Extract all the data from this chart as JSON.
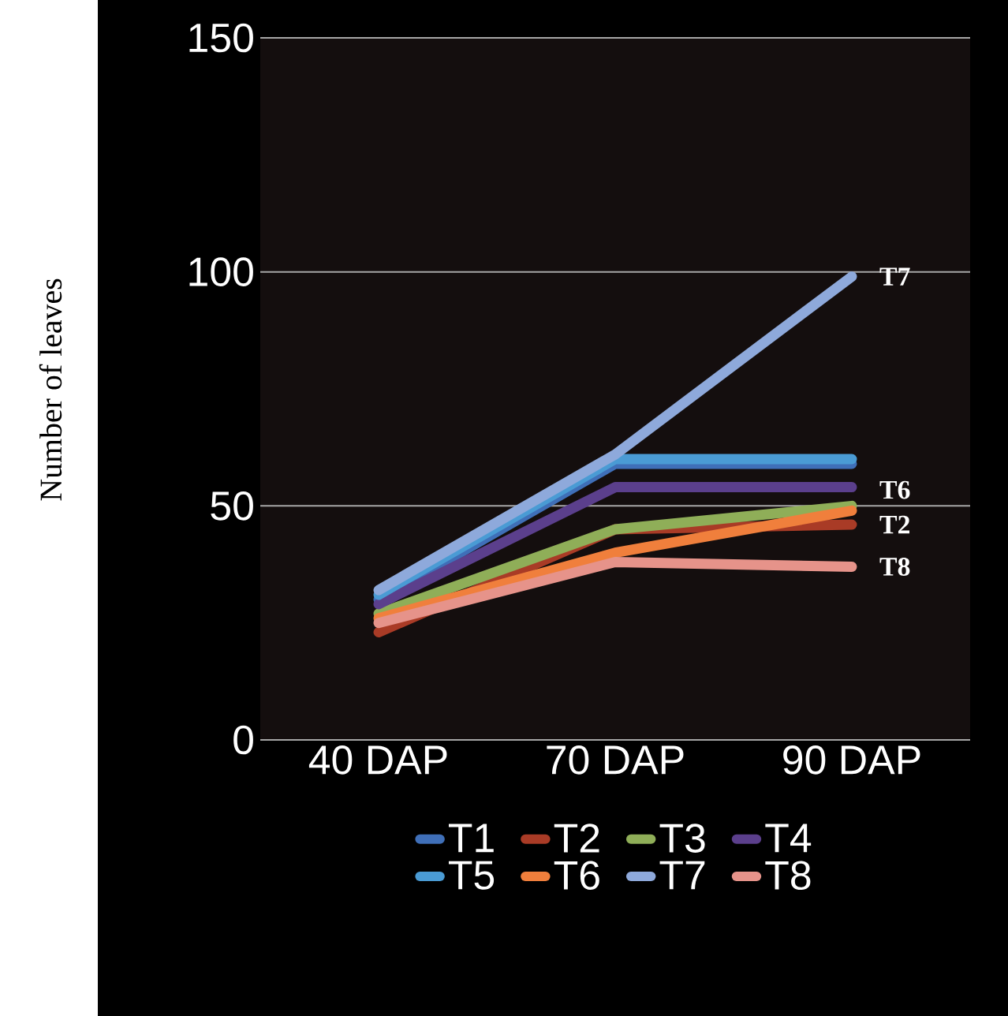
{
  "chart_data": {
    "type": "line",
    "ylabel": "Number of leaves",
    "categories": [
      "40 DAP",
      "70 DAP",
      "90 DAP"
    ],
    "ylim": [
      0,
      150
    ],
    "yticks": [
      0,
      50,
      100,
      150
    ],
    "grid": "y",
    "legend": "bottom",
    "marker": "none",
    "line_style": "solid",
    "series": [
      {
        "name": "T1",
        "color": "#3f6fb8",
        "values": [
          30,
          59,
          59
        ]
      },
      {
        "name": "T2",
        "color": "#a93b26",
        "values": [
          23,
          45,
          46
        ]
      },
      {
        "name": "T3",
        "color": "#8fae58",
        "values": [
          27,
          45,
          50
        ]
      },
      {
        "name": "T4",
        "color": "#5b3f8c",
        "values": [
          29,
          54,
          54
        ]
      },
      {
        "name": "T5",
        "color": "#4a9bd4",
        "values": [
          31,
          60,
          60
        ]
      },
      {
        "name": "T6",
        "color": "#f07f3c",
        "values": [
          26,
          40,
          49
        ]
      },
      {
        "name": "T7",
        "color": "#8ea9db",
        "values": [
          32,
          61,
          99
        ]
      },
      {
        "name": "T8",
        "color": "#e6938a",
        "values": [
          25,
          38,
          37
        ]
      }
    ],
    "annotations": [
      {
        "text": "T7",
        "x": "90 DAP",
        "y": 99
      },
      {
        "text": "T6",
        "x": "90 DAP",
        "y": 49
      },
      {
        "text": "T2",
        "x": "90 DAP",
        "y": 46
      },
      {
        "text": "T8",
        "x": "90 DAP",
        "y": 37
      }
    ]
  }
}
